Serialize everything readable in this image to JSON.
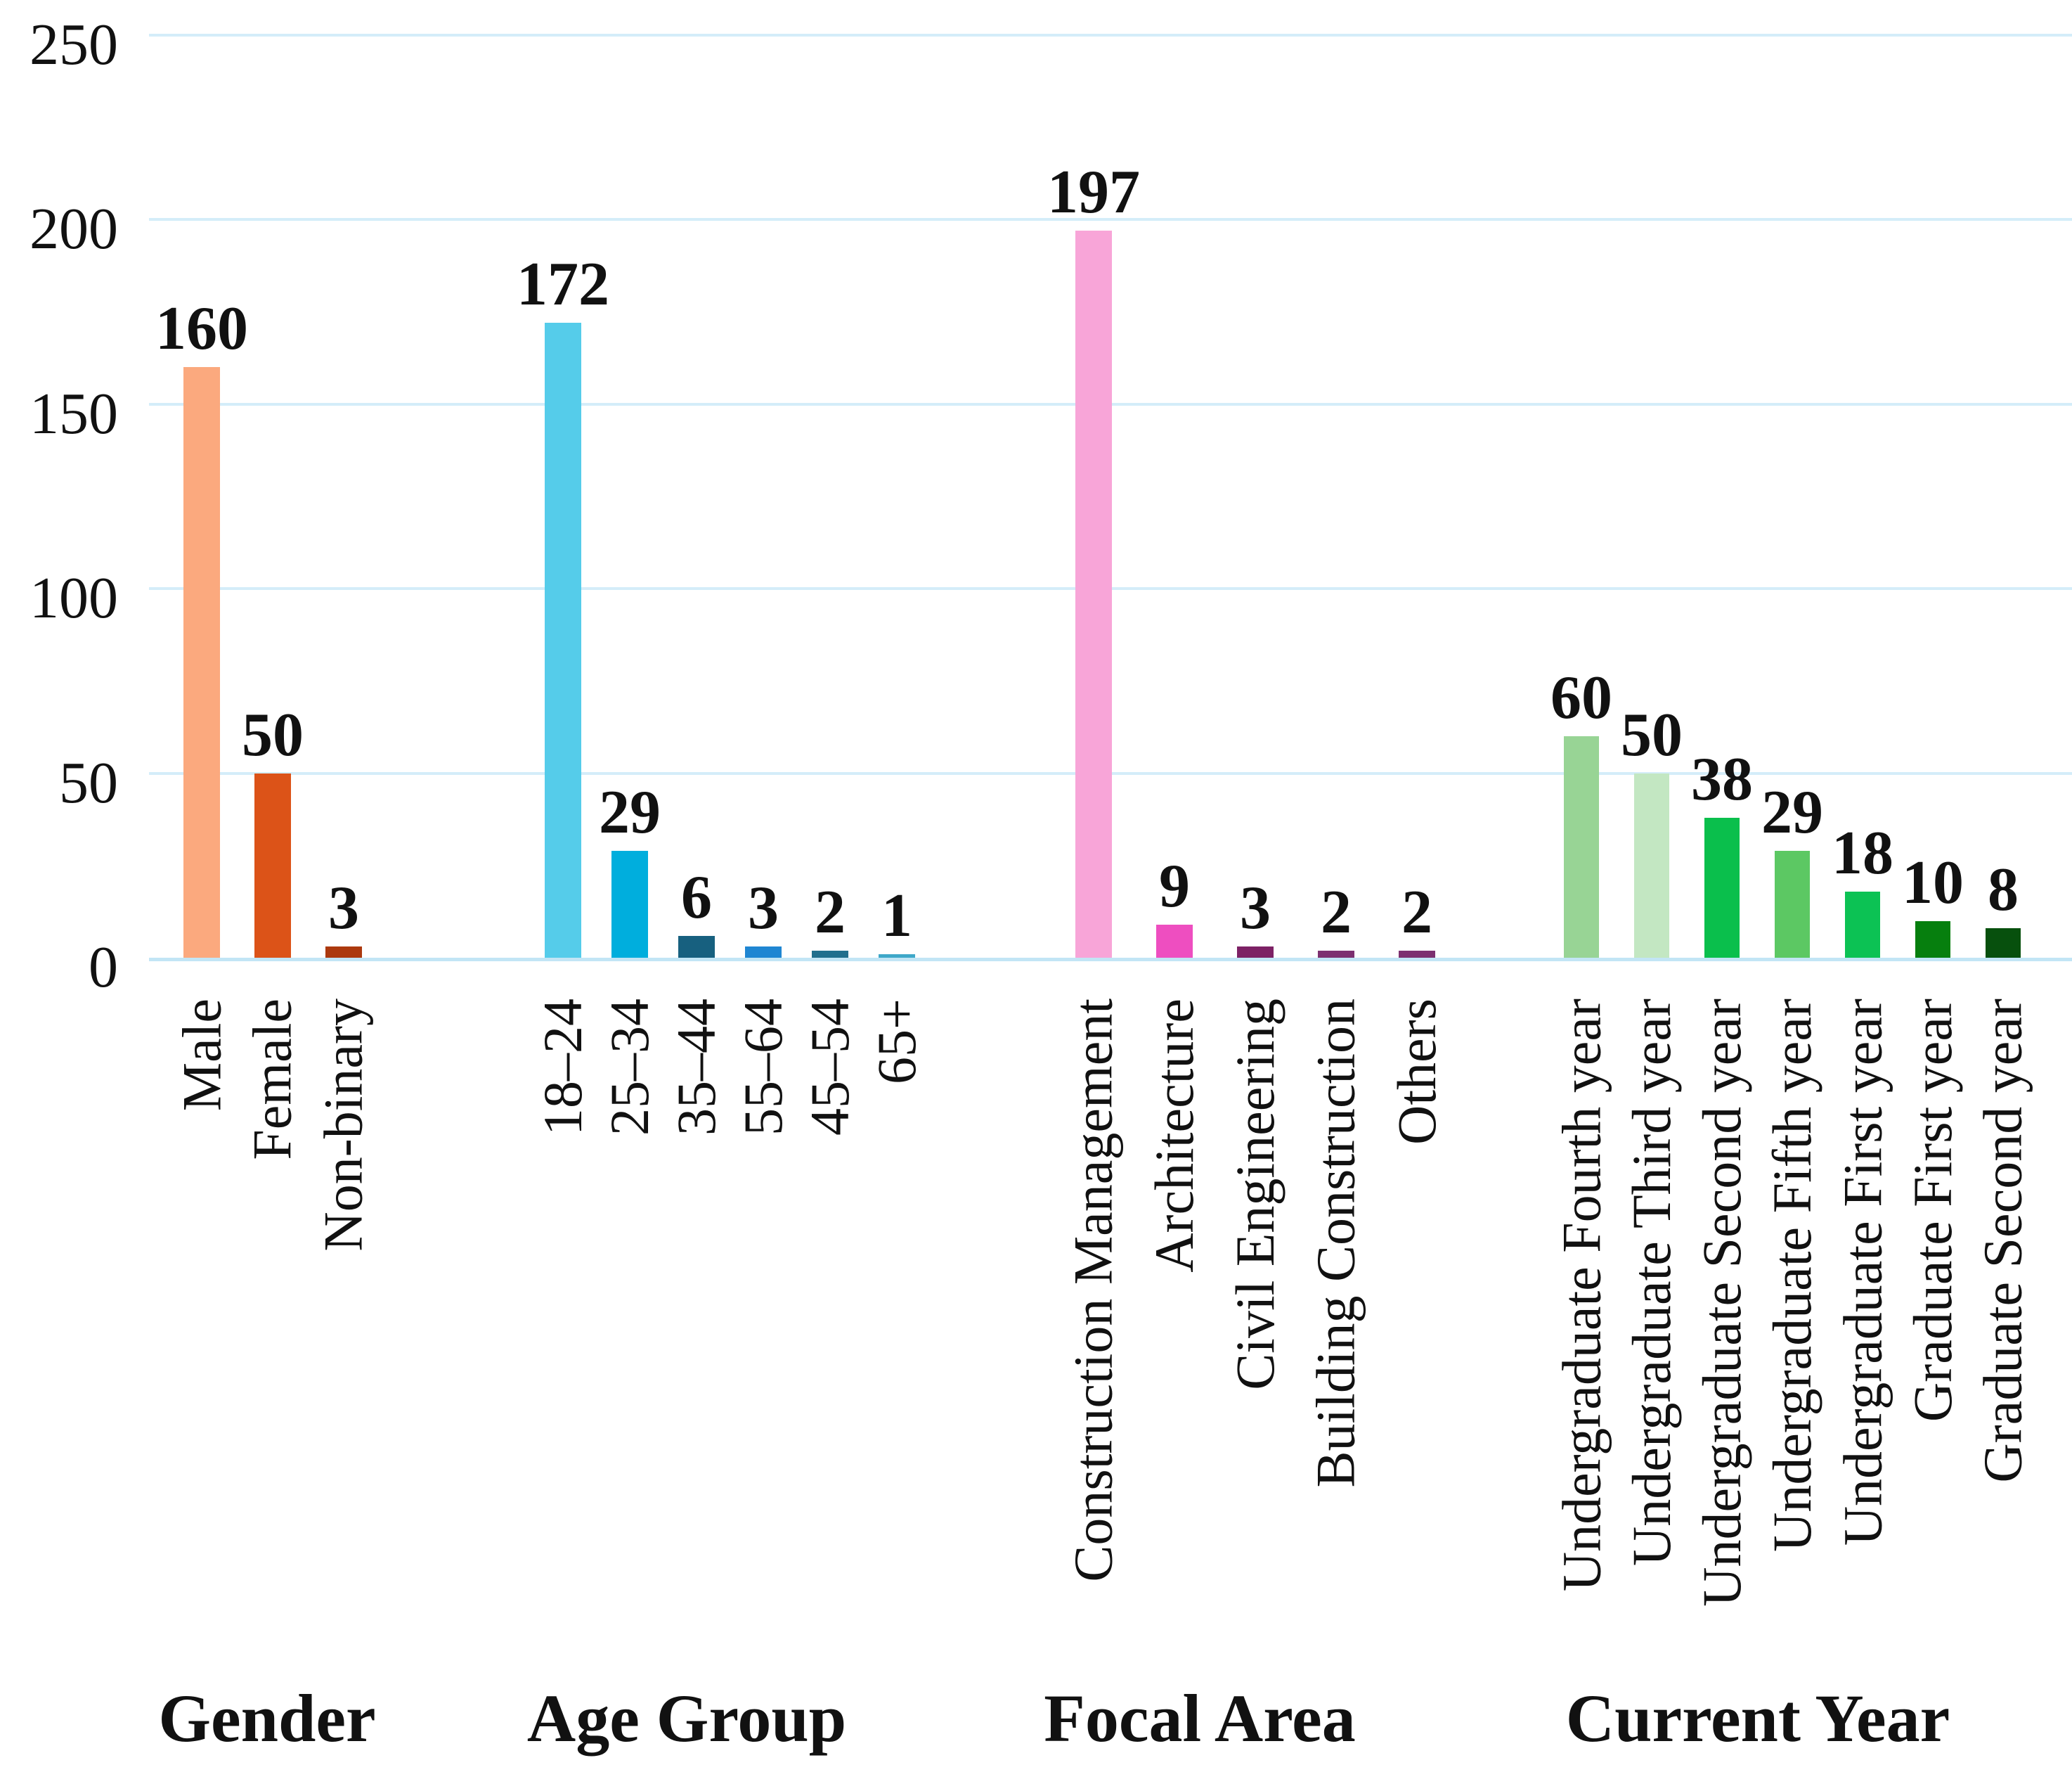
{
  "chart_data": {
    "type": "bar",
    "title": "",
    "xlabel": "",
    "ylabel": "",
    "ylim": [
      0,
      250
    ],
    "yticks": [
      0,
      50,
      100,
      150,
      200,
      250
    ],
    "grid": true,
    "legend_position": "none",
    "groups": [
      {
        "label": "Gender",
        "bars": [
          {
            "category": "Male",
            "value": 160,
            "color": "#FBA97E"
          },
          {
            "category": "Female",
            "value": 50,
            "color": "#DC5318"
          },
          {
            "category": "Non-binary",
            "value": 3,
            "color": "#AC390E"
          }
        ]
      },
      {
        "label": "Age Group",
        "bars": [
          {
            "category": "18–24",
            "value": 172,
            "color": "#55CCEA"
          },
          {
            "category": "25–34",
            "value": 29,
            "color": "#00AEDD"
          },
          {
            "category": "35–44",
            "value": 6,
            "color": "#17607F"
          },
          {
            "category": "55–64",
            "value": 3,
            "color": "#1F86D2"
          },
          {
            "category": "45–54",
            "value": 2,
            "color": "#216F8D"
          },
          {
            "category": "65+",
            "value": 1,
            "color": "#3FA8C9"
          }
        ]
      },
      {
        "label": "Focal Area",
        "bars": [
          {
            "category": "Construction Management",
            "value": 197,
            "color": "#F8A5D8"
          },
          {
            "category": "Architecture",
            "value": 9,
            "color": "#EE4EC0"
          },
          {
            "category": "Civil Engineering",
            "value": 3,
            "color": "#7D2165"
          },
          {
            "category": "Building Construction",
            "value": 2,
            "color": "#7D3070"
          },
          {
            "category": "Others",
            "value": 2,
            "color": "#7D3070"
          }
        ]
      },
      {
        "label": "Current Year",
        "bars": [
          {
            "category": "Undergraduate Fourth year",
            "value": 60,
            "color": "#98D495"
          },
          {
            "category": "Undergraduate Third year",
            "value": 50,
            "color": "#C3E7C2"
          },
          {
            "category": "Undergraduate Second year",
            "value": 38,
            "color": "#0ABF4C"
          },
          {
            "category": "Undergraduate Fifth year",
            "value": 29,
            "color": "#5CC863"
          },
          {
            "category": "Undergraduate First year",
            "value": 18,
            "color": "#0CC254"
          },
          {
            "category": "Graduate First year",
            "value": 10,
            "color": "#067F0E"
          },
          {
            "category": "Graduate Second year",
            "value": 8,
            "color": "#07500D"
          }
        ]
      }
    ]
  },
  "colors": {
    "gridline": "#D4EDF9",
    "baseline": "#C2E5F5",
    "text": "#111111",
    "background": "#FFFFFF"
  }
}
